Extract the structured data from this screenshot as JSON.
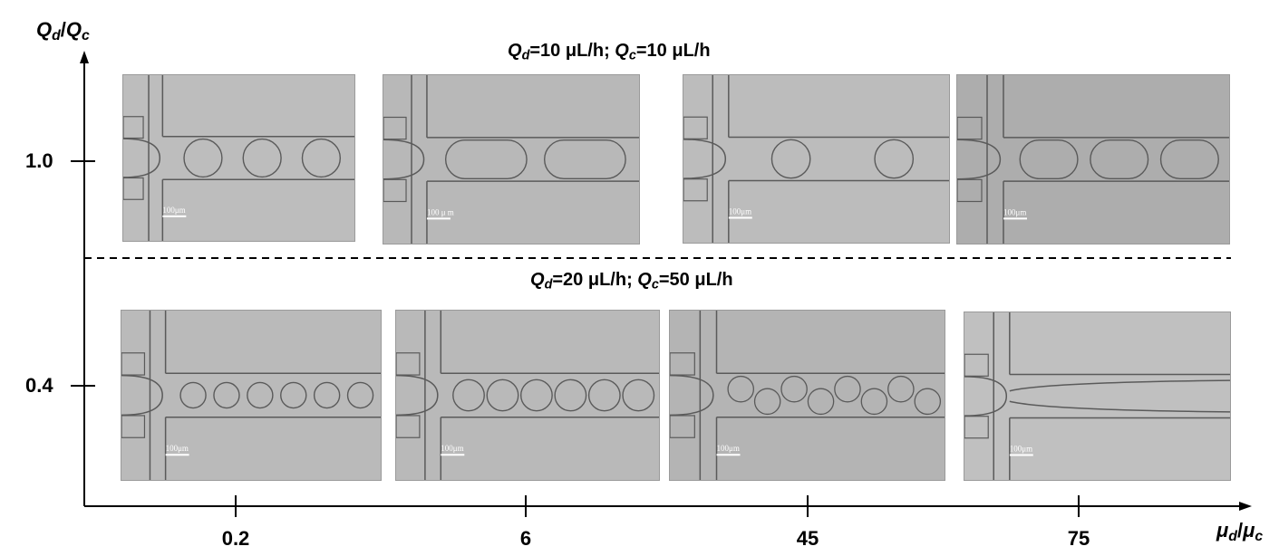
{
  "y_axis": {
    "label_main": "Q",
    "label_main_sub": "d",
    "label_sep": "/",
    "label_den": "Q",
    "label_den_sub": "c",
    "ticks": [
      "1.0",
      "0.4"
    ]
  },
  "x_axis": {
    "label_main": "μ",
    "label_main_sub": "d",
    "label_sep": "/",
    "label_den": "μ",
    "label_den_sub": "c",
    "ticks": [
      "0.2",
      "6",
      "45",
      "75"
    ]
  },
  "rows": [
    {
      "condition": {
        "qd_var": "Q",
        "qd_sub": "d",
        "qd_value": "=10 μL/h; ",
        "qc_var": "Q",
        "qc_sub": "c",
        "qc_value": "=10 μL/h"
      },
      "panels": [
        {
          "scale": "100μm",
          "shade": "#bdbdbd",
          "regime": "drops",
          "drops": 3
        },
        {
          "scale": "100 μ m",
          "shade": "#b8b8b8",
          "regime": "plugs",
          "drops": 2
        },
        {
          "scale": "100μm",
          "shade": "#bcbcbc",
          "regime": "drops",
          "drops": 2
        },
        {
          "scale": "100μm",
          "shade": "#adadad",
          "regime": "plugs",
          "drops": 3
        }
      ]
    },
    {
      "condition": {
        "qd_var": "Q",
        "qd_sub": "d",
        "qd_value": "=20 μL/h; ",
        "qc_var": "Q",
        "qc_sub": "c",
        "qc_value": "=50 μL/h"
      },
      "panels": [
        {
          "scale": "100μm",
          "shade": "#bababa",
          "regime": "small_drops",
          "drops": 6
        },
        {
          "scale": "100μm",
          "shade": "#b9b9b9",
          "regime": "medium_drops",
          "drops": 6
        },
        {
          "scale": "100μm",
          "shade": "#b4b4b4",
          "regime": "staggered",
          "drops": 8
        },
        {
          "scale": "100μm",
          "shade": "#c0c0c0",
          "regime": "jet",
          "drops": 0
        }
      ]
    }
  ]
}
